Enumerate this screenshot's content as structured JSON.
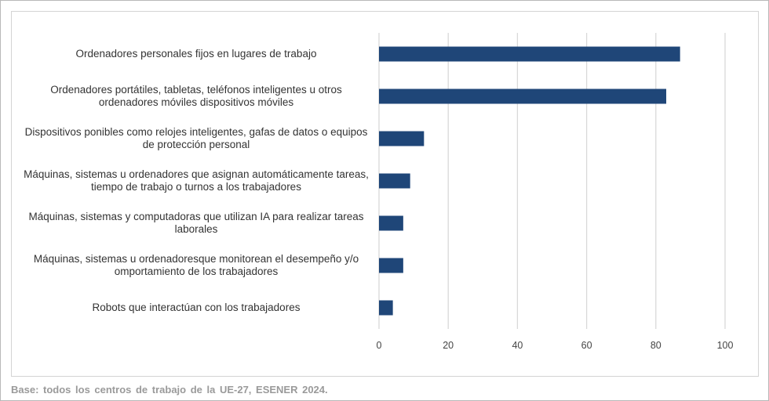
{
  "chart_data": {
    "type": "bar",
    "orientation": "horizontal",
    "categories": [
      "Ordenadores personales fijos en lugares de trabajo",
      "Ordenadores portátiles, tabletas, teléfonos inteligentes u otros ordenadores móviles dispositivos móviles",
      "Dispositivos ponibles como relojes inteligentes, gafas de datos o equipos de protección personal",
      "Máquinas, sistemas u ordenadores que asignan automáticamente tareas, tiempo de trabajo o turnos a los trabajadores",
      "Máquinas, sistemas y computadoras que utilizan IA para realizar tareas laborales",
      "Máquinas, sistemas u ordenadoresque monitorean el desempeño y/o omportamiento de los trabajadores",
      "Robots que interactúan con los trabajadores"
    ],
    "values": [
      87,
      83,
      13,
      9,
      7,
      7,
      4
    ],
    "xlim": [
      0,
      100
    ],
    "xticks": [
      "0",
      "20",
      "40",
      "60",
      "80",
      "100"
    ],
    "grid": true,
    "bar_color": "#1f4678",
    "title": "",
    "xlabel": "",
    "ylabel": ""
  },
  "footnote": "Base:  todos  los  centros de trabajo de la UE-27, ESENER  2024."
}
